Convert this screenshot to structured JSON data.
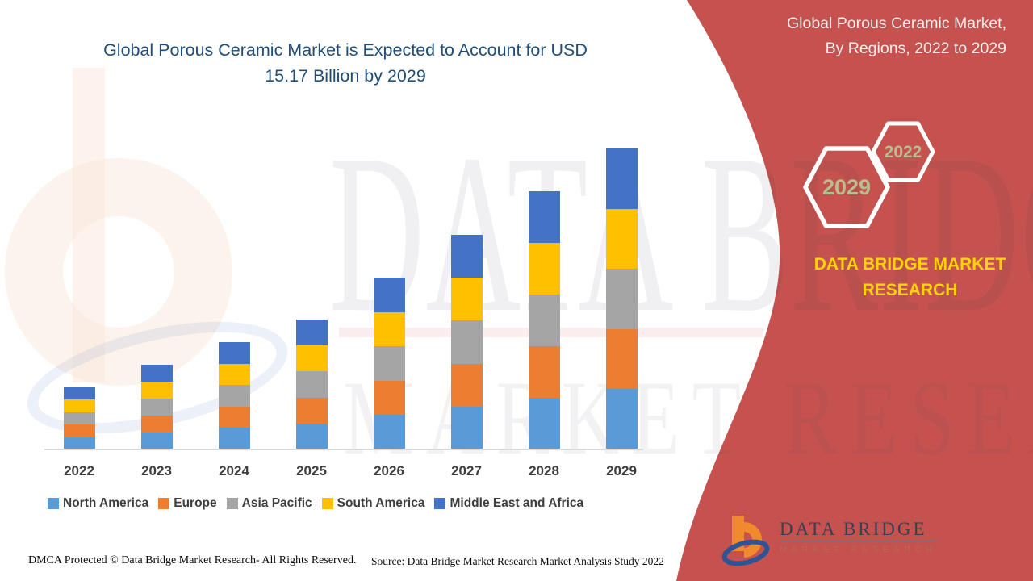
{
  "header": {
    "title_line1": "Global Porous Ceramic Market is Expected to Account for USD",
    "title_line2": "15.17 Billion by 2029"
  },
  "panel": {
    "title_line1": "Global Porous Ceramic Market,",
    "title_line2": "By Regions, 2022 to 2029",
    "hex_back_label": "2029",
    "hex_front_label": "2022",
    "brand_line1": "DATA BRIDGE MARKET",
    "brand_line2": "RESEARCH"
  },
  "chart_data": {
    "type": "bar",
    "stacked": true,
    "title": "Global Porous Ceramic Market is Expected to Account for USD 15.17 Billion by 2029",
    "units": "USD Billion",
    "categories": [
      "2022",
      "2023",
      "2024",
      "2025",
      "2026",
      "2027",
      "2028",
      "2029"
    ],
    "series": [
      {
        "name": "North America",
        "color": "#5B9BD5",
        "values": [
          0.626,
          0.854,
          1.082,
          1.31,
          1.732,
          2.164,
          2.602,
          3.034
        ]
      },
      {
        "name": "Europe",
        "color": "#ED7D31",
        "values": [
          0.626,
          0.854,
          1.082,
          1.31,
          1.732,
          2.164,
          2.602,
          3.034
        ]
      },
      {
        "name": "Asia Pacific",
        "color": "#A5A5A5",
        "values": [
          0.626,
          0.854,
          1.082,
          1.31,
          1.732,
          2.164,
          2.602,
          3.034
        ]
      },
      {
        "name": "South America",
        "color": "#FFC000",
        "values": [
          0.626,
          0.854,
          1.082,
          1.31,
          1.732,
          2.164,
          2.602,
          3.034
        ]
      },
      {
        "name": "Middle East and Africa",
        "color": "#4472C4",
        "values": [
          0.626,
          0.854,
          1.082,
          1.31,
          1.732,
          2.164,
          2.602,
          3.034
        ]
      }
    ],
    "totals_usd_billion": [
      3.13,
      4.27,
      5.41,
      6.55,
      8.66,
      10.82,
      13.01,
      15.17
    ],
    "xlabel": "",
    "ylabel": "",
    "ylim": [
      0,
      16
    ],
    "grid": false,
    "legend_position": "bottom"
  },
  "footer": {
    "dmca": "DMCA Protected © Data Bridge Market Research- All Rights Reserved.",
    "source": "Source: Data Bridge Market Research Market Analysis Study 2022"
  },
  "logo": {
    "name_top": "DATA BRIDGE",
    "name_bottom": "MARKET RESEARCH"
  },
  "watermark": {
    "line1": "DATA BRIDGE",
    "line2": "MARKET RESEARCH"
  },
  "colors": {
    "panel_red": "#C5524E",
    "title_blue": "#1F4E79",
    "brand_yellow": "#FFD30A",
    "hex_label_green": "#B8BF8E",
    "axis_line": "#D9D9D9"
  }
}
